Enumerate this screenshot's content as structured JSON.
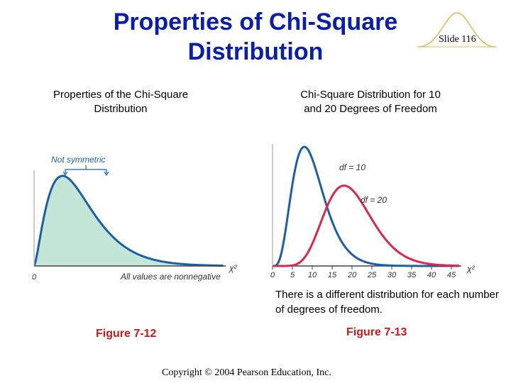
{
  "slide": {
    "title_line1": "Properties of Chi-Square",
    "title_line2": "Distribution",
    "slide_number": "Slide 116",
    "left_caption": "Properties of  the Chi-Square Distribution",
    "right_caption_line1": "Chi-Square  Distribution  for 10",
    "right_caption_line2": "and  20  Degrees  of  Freedom",
    "note": "There is a different distribution for each number of degrees of freedom.",
    "figure_left": "Figure 7-12",
    "figure_right": "Figure 7-13",
    "copyright": "Copyright © 2004 Pearson Education, Inc."
  },
  "left_figure": {
    "annotation_top": "Not symmetric",
    "annotation_bottom": "All values are nonnegative",
    "origin_label": "0",
    "axis_symbol": "χ²",
    "fill_color": "#c3e6d6",
    "curve_color": "#1c5fa8"
  },
  "chart_data": {
    "type": "line",
    "xlabel": "χ²",
    "x_ticks": [
      "0",
      "5",
      "10",
      "15",
      "20",
      "25",
      "30",
      "35",
      "40",
      "45"
    ],
    "xlim": [
      0,
      47
    ],
    "series": [
      {
        "name": "df = 10",
        "df": 10,
        "color": "#1c5fa8"
      },
      {
        "name": "df = 20",
        "df": 20,
        "color": "#e0254a"
      }
    ]
  }
}
